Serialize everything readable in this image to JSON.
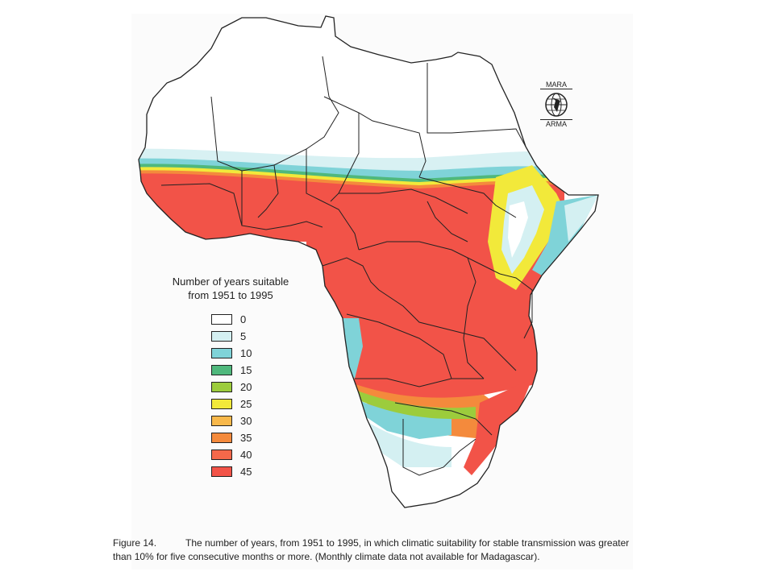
{
  "legend": {
    "title_line1": "Number of years suitable",
    "title_line2": "from 1951 to 1995",
    "items": [
      {
        "label": "0",
        "color": "#ffffff"
      },
      {
        "label": "5",
        "color": "#d4f0f2"
      },
      {
        "label": "10",
        "color": "#7fd3d8"
      },
      {
        "label": "15",
        "color": "#4fb87c"
      },
      {
        "label": "20",
        "color": "#9ccc3c"
      },
      {
        "label": "25",
        "color": "#f2e93a"
      },
      {
        "label": "30",
        "color": "#f8b84a"
      },
      {
        "label": "35",
        "color": "#f48a3c"
      },
      {
        "label": "40",
        "color": "#f4684a"
      },
      {
        "label": "45",
        "color": "#f25348"
      }
    ]
  },
  "logo": {
    "top_text": "MARA",
    "bottom_text": "ARMA",
    "icon": "globe-icon"
  },
  "caption": {
    "label": "Figure 14.",
    "text_line1": "The number of years, from 1951 to 1995, in which climatic suitability for stable transmission was greater",
    "text_line2": "than 10% for five consecutive months or more. (Monthly climate data not available for Madagascar)."
  },
  "map": {
    "region": "Africa",
    "suitable_color": "#f25348",
    "transition_color": "#7fd3d8",
    "low_color": "#d4f0f2",
    "border_color": "#222222"
  }
}
